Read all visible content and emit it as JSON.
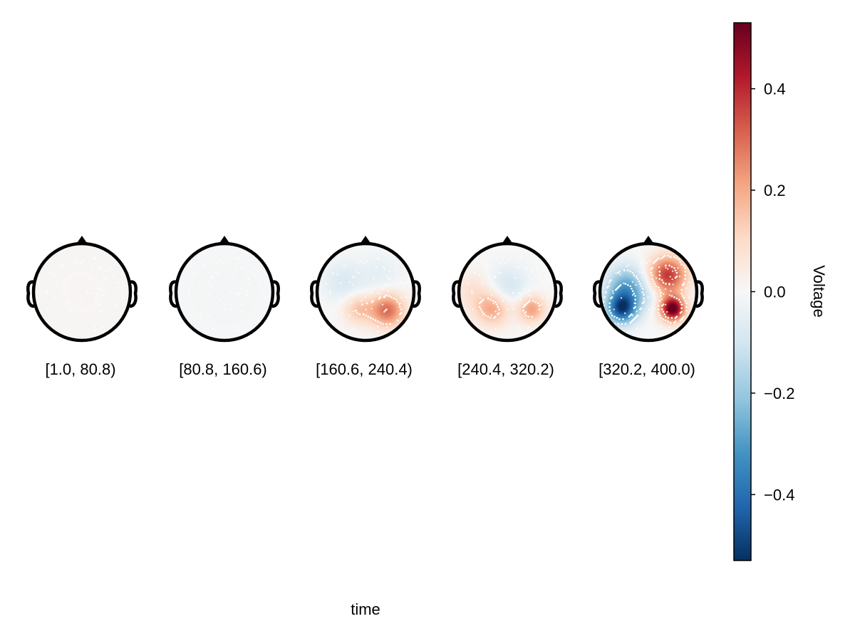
{
  "chart_data": {
    "type": "heatmap",
    "subtype": "topoplot-series",
    "xlabel": "time",
    "colorbar": {
      "label": "Voltage",
      "range": [
        -0.53,
        0.53
      ],
      "ticks": [
        0.4,
        0.2,
        0.0,
        -0.2,
        -0.4
      ],
      "tick_labels": [
        "0.4",
        "0.2",
        "0.0",
        "−0.2",
        "−0.4"
      ],
      "colormap": "RdBu (reversed)",
      "stops": [
        "#053061",
        "#2166ac",
        "#4393c3",
        "#92c5de",
        "#d1e5f0",
        "#f7f7f7",
        "#fddbc7",
        "#f4a582",
        "#d6604d",
        "#b2182b",
        "#67001f"
      ]
    },
    "panels": [
      {
        "label": "[1.0, 80.8)",
        "sources": [
          {
            "x": 0.0,
            "y": 0.0,
            "value": 0.01,
            "spread": 0.9
          }
        ]
      },
      {
        "label": "[80.8, 160.6)",
        "sources": [
          {
            "x": 0.0,
            "y": 0.0,
            "value": -0.01,
            "spread": 0.9
          }
        ]
      },
      {
        "label": "[160.6, 240.4)",
        "sources": [
          {
            "x": 0.45,
            "y": 0.38,
            "value": 0.3,
            "spread": 0.25
          },
          {
            "x": -0.15,
            "y": 0.35,
            "value": 0.15,
            "spread": 0.22
          },
          {
            "x": -0.45,
            "y": -0.2,
            "value": -0.08,
            "spread": 0.3
          },
          {
            "x": 0.3,
            "y": -0.35,
            "value": -0.05,
            "spread": 0.3
          }
        ]
      },
      {
        "label": "[240.4, 320.2)",
        "sources": [
          {
            "x": -0.3,
            "y": 0.35,
            "value": 0.2,
            "spread": 0.25
          },
          {
            "x": 0.5,
            "y": 0.35,
            "value": 0.22,
            "spread": 0.2
          },
          {
            "x": -0.7,
            "y": 0.0,
            "value": 0.08,
            "spread": 0.3
          },
          {
            "x": 0.0,
            "y": -0.1,
            "value": -0.1,
            "spread": 0.3
          }
        ]
      },
      {
        "label": "[320.2, 400.0)",
        "sources": [
          {
            "x": -0.55,
            "y": 0.35,
            "value": -0.45,
            "spread": 0.22
          },
          {
            "x": -0.45,
            "y": -0.1,
            "value": -0.28,
            "spread": 0.3
          },
          {
            "x": 0.5,
            "y": 0.35,
            "value": 0.55,
            "spread": 0.18
          },
          {
            "x": 0.4,
            "y": -0.35,
            "value": 0.38,
            "spread": 0.28
          },
          {
            "x": 0.0,
            "y": 0.1,
            "value": -0.05,
            "spread": 0.2
          }
        ]
      }
    ]
  }
}
